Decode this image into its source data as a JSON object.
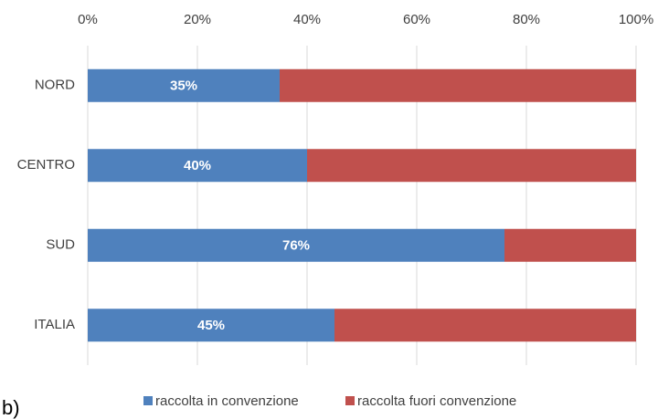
{
  "chart_data": {
    "type": "stacked-bar-horizontal",
    "categories": [
      "NORD",
      "CENTRO",
      "SUD",
      "ITALIA"
    ],
    "series": [
      {
        "name": "raccolta in convenzione",
        "color": "#4f81bd",
        "values": [
          35,
          40,
          76,
          45
        ],
        "value_labels": [
          "35%",
          "40%",
          "76%",
          "45%"
        ]
      },
      {
        "name": "raccolta fuori convenzione",
        "color": "#c0504d",
        "values": [
          65,
          60,
          24,
          55
        ]
      }
    ],
    "xlim": [
      0,
      100
    ],
    "xticks": [
      {
        "value": 0,
        "label": "0%"
      },
      {
        "value": 20,
        "label": "20%"
      },
      {
        "value": 40,
        "label": "40%"
      },
      {
        "value": 60,
        "label": "60%"
      },
      {
        "value": 80,
        "label": "80%"
      },
      {
        "value": 100,
        "label": "100%"
      }
    ],
    "grid": true,
    "legend": "bottom",
    "annotation": "b)"
  }
}
